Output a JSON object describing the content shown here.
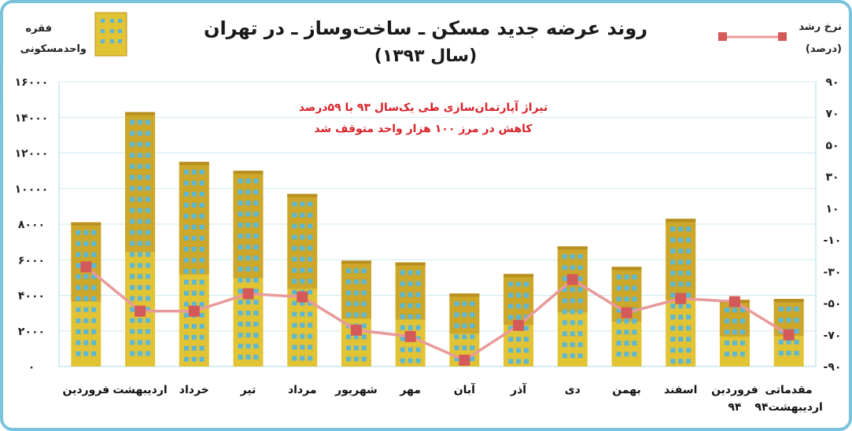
{
  "chart_data": {
    "type": "bar",
    "title": "روند عرضه جدید مسکن ـ ساخت‌وساز ـ در تهران",
    "subtitle": "(سال ۱۳۹۳)",
    "categories": [
      "فروردین",
      "اردیبهشت",
      "خرداد",
      "تیر",
      "مرداد",
      "شهریور",
      "مهر",
      "آبان",
      "آذر",
      "دی",
      "بهمن",
      "اسفند",
      "فروردین ۹۴",
      "مقدماتی اردیبهشت۹۴"
    ],
    "series": [
      {
        "name": "فقره واحد مسکونی",
        "type": "bar",
        "axis": "left",
        "values": [
          8100,
          14300,
          11500,
          11000,
          9700,
          5950,
          5850,
          4100,
          5200,
          6750,
          5600,
          8300,
          3750,
          3800
        ]
      },
      {
        "name": "نرخ رشد (درصد)",
        "type": "line",
        "axis": "right",
        "values": [
          -27,
          -55,
          -55,
          -44,
          -46,
          -67,
          -71,
          -86,
          -64,
          -35,
          -56,
          -47,
          -49,
          -70
        ]
      }
    ],
    "y_left": {
      "min": 0,
      "max": 16000,
      "ticks": [
        "۰",
        "۲۰۰۰",
        "۴۰۰۰",
        "۶۰۰۰",
        "۸۰۰۰",
        "۱۰۰۰۰",
        "۱۲۰۰۰",
        "۱۴۰۰۰",
        "۱۶۰۰۰"
      ]
    },
    "y_right": {
      "min": -90,
      "max": 90,
      "ticks": [
        "۹۰",
        "۷۰",
        "۵۰",
        "۳۰",
        "۱۰",
        "-۱۰",
        "-۳۰",
        "-۵۰",
        "-۷۰",
        "-۹۰"
      ]
    },
    "left_unit": [
      "فقره",
      "واحدمسکونی"
    ],
    "right_unit": [
      "نرخ رشد",
      "(درصد)"
    ],
    "annotation": [
      "تیراژ آپارتمان‌سازی طی یک‌سال ۹۳ با ۵۹درصد",
      "کاهش در مرز ۱۰۰ هزار واحد متوقف شد"
    ],
    "grid": true,
    "colors": {
      "frame": "#79c4dc",
      "bar_fill": "#e2c334",
      "bar_top_dark": "#b98f20",
      "window": "#5ab8d6",
      "line": "#e89a9a",
      "marker": "#d45a5a",
      "annotation": "#d8232a"
    }
  }
}
